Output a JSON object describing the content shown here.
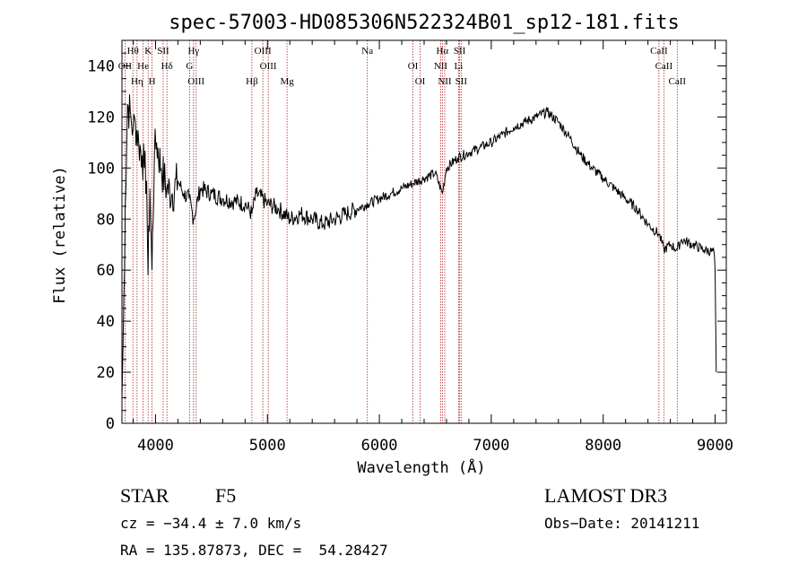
{
  "chart_data": {
    "type": "line",
    "title": "spec-57003-HD085306N522324B01_sp12-181.fits",
    "xlabel": "Wavelength (Å)",
    "ylabel": "Flux (relative)",
    "xlim": [
      3700,
      9100
    ],
    "ylim": [
      0,
      150
    ],
    "xticks": [
      4000,
      5000,
      6000,
      7000,
      8000,
      9000
    ],
    "yticks": [
      0,
      20,
      40,
      60,
      80,
      100,
      120,
      140
    ],
    "series": [
      {
        "name": "flux",
        "color": "#000000",
        "x": [
          3700,
          3710,
          3730,
          3750,
          3780,
          3800,
          3820,
          3850,
          3880,
          3900,
          3920,
          3933,
          3950,
          3968,
          3990,
          4010,
          4050,
          4100,
          4150,
          4200,
          4250,
          4300,
          4340,
          4400,
          4500,
          4600,
          4700,
          4800,
          4861,
          4900,
          5000,
          5100,
          5200,
          5300,
          5400,
          5500,
          5600,
          5700,
          5800,
          5900,
          6000,
          6100,
          6200,
          6300,
          6400,
          6500,
          6563,
          6600,
          6700,
          6800,
          6900,
          7000,
          7100,
          7200,
          7300,
          7400,
          7500,
          7600,
          7700,
          7800,
          7900,
          8000,
          8100,
          8200,
          8300,
          8400,
          8500,
          8542,
          8600,
          8662,
          8700,
          8800,
          8900,
          8990,
          9000,
          9010
        ],
        "values": [
          10,
          30,
          85,
          125,
          120,
          115,
          118,
          110,
          105,
          100,
          95,
          58,
          92,
          60,
          105,
          110,
          100,
          92,
          90,
          95,
          90,
          88,
          80,
          92,
          90,
          88,
          87,
          86,
          82,
          90,
          86,
          84,
          80,
          82,
          80,
          78,
          80,
          82,
          84,
          86,
          88,
          90,
          92,
          94,
          96,
          98,
          90,
          100,
          104,
          106,
          108,
          110,
          113,
          116,
          118,
          120,
          122,
          118,
          112,
          105,
          100,
          96,
          92,
          88,
          84,
          78,
          74,
          68,
          70,
          68,
          72,
          70,
          68,
          67,
          60,
          20
        ]
      }
    ],
    "lines": [
      {
        "label": "Hθ",
        "x": 3798
      },
      {
        "label": "OII",
        "x": 3727
      },
      {
        "label": "Hη",
        "x": 3835
      },
      {
        "label": "K",
        "x": 3934
      },
      {
        "label": "He",
        "x": 3889
      },
      {
        "label": "H",
        "x": 3969
      },
      {
        "label": "SII",
        "x": 4068
      },
      {
        "label": "Hδ",
        "x": 4102
      },
      {
        "label": "OIII",
        "x": 4363
      },
      {
        "label": "Hγ",
        "x": 4340
      },
      {
        "label": "G",
        "x": 4304
      },
      {
        "label": "Hβ",
        "x": 4861
      },
      {
        "label": "OIII",
        "x": 4959
      },
      {
        "label": "OIII",
        "x": 5007
      },
      {
        "label": "Mg",
        "x": 5175
      },
      {
        "label": "Na",
        "x": 5893
      },
      {
        "label": "OI",
        "x": 6300
      },
      {
        "label": "OI",
        "x": 6364
      },
      {
        "label": "Hα",
        "x": 6563
      },
      {
        "label": "NII",
        "x": 6548
      },
      {
        "label": "NII",
        "x": 6584
      },
      {
        "label": "SII",
        "x": 6717
      },
      {
        "label": "Li",
        "x": 6708
      },
      {
        "label": "SII",
        "x": 6731
      },
      {
        "label": "CaII",
        "x": 8498
      },
      {
        "label": "CaII",
        "x": 8542
      },
      {
        "label": "CaII",
        "x": 8662
      }
    ],
    "line_color": "#b22222"
  },
  "info": {
    "class_label": "STAR",
    "subclass": "F5",
    "survey": "LAMOST DR3",
    "cz": "cz = −34.4 ± 7.0 km/s",
    "obs_date": "Obs−Date: 20141211",
    "coords": "RA = 135.87873, DEC =  54.28427"
  }
}
